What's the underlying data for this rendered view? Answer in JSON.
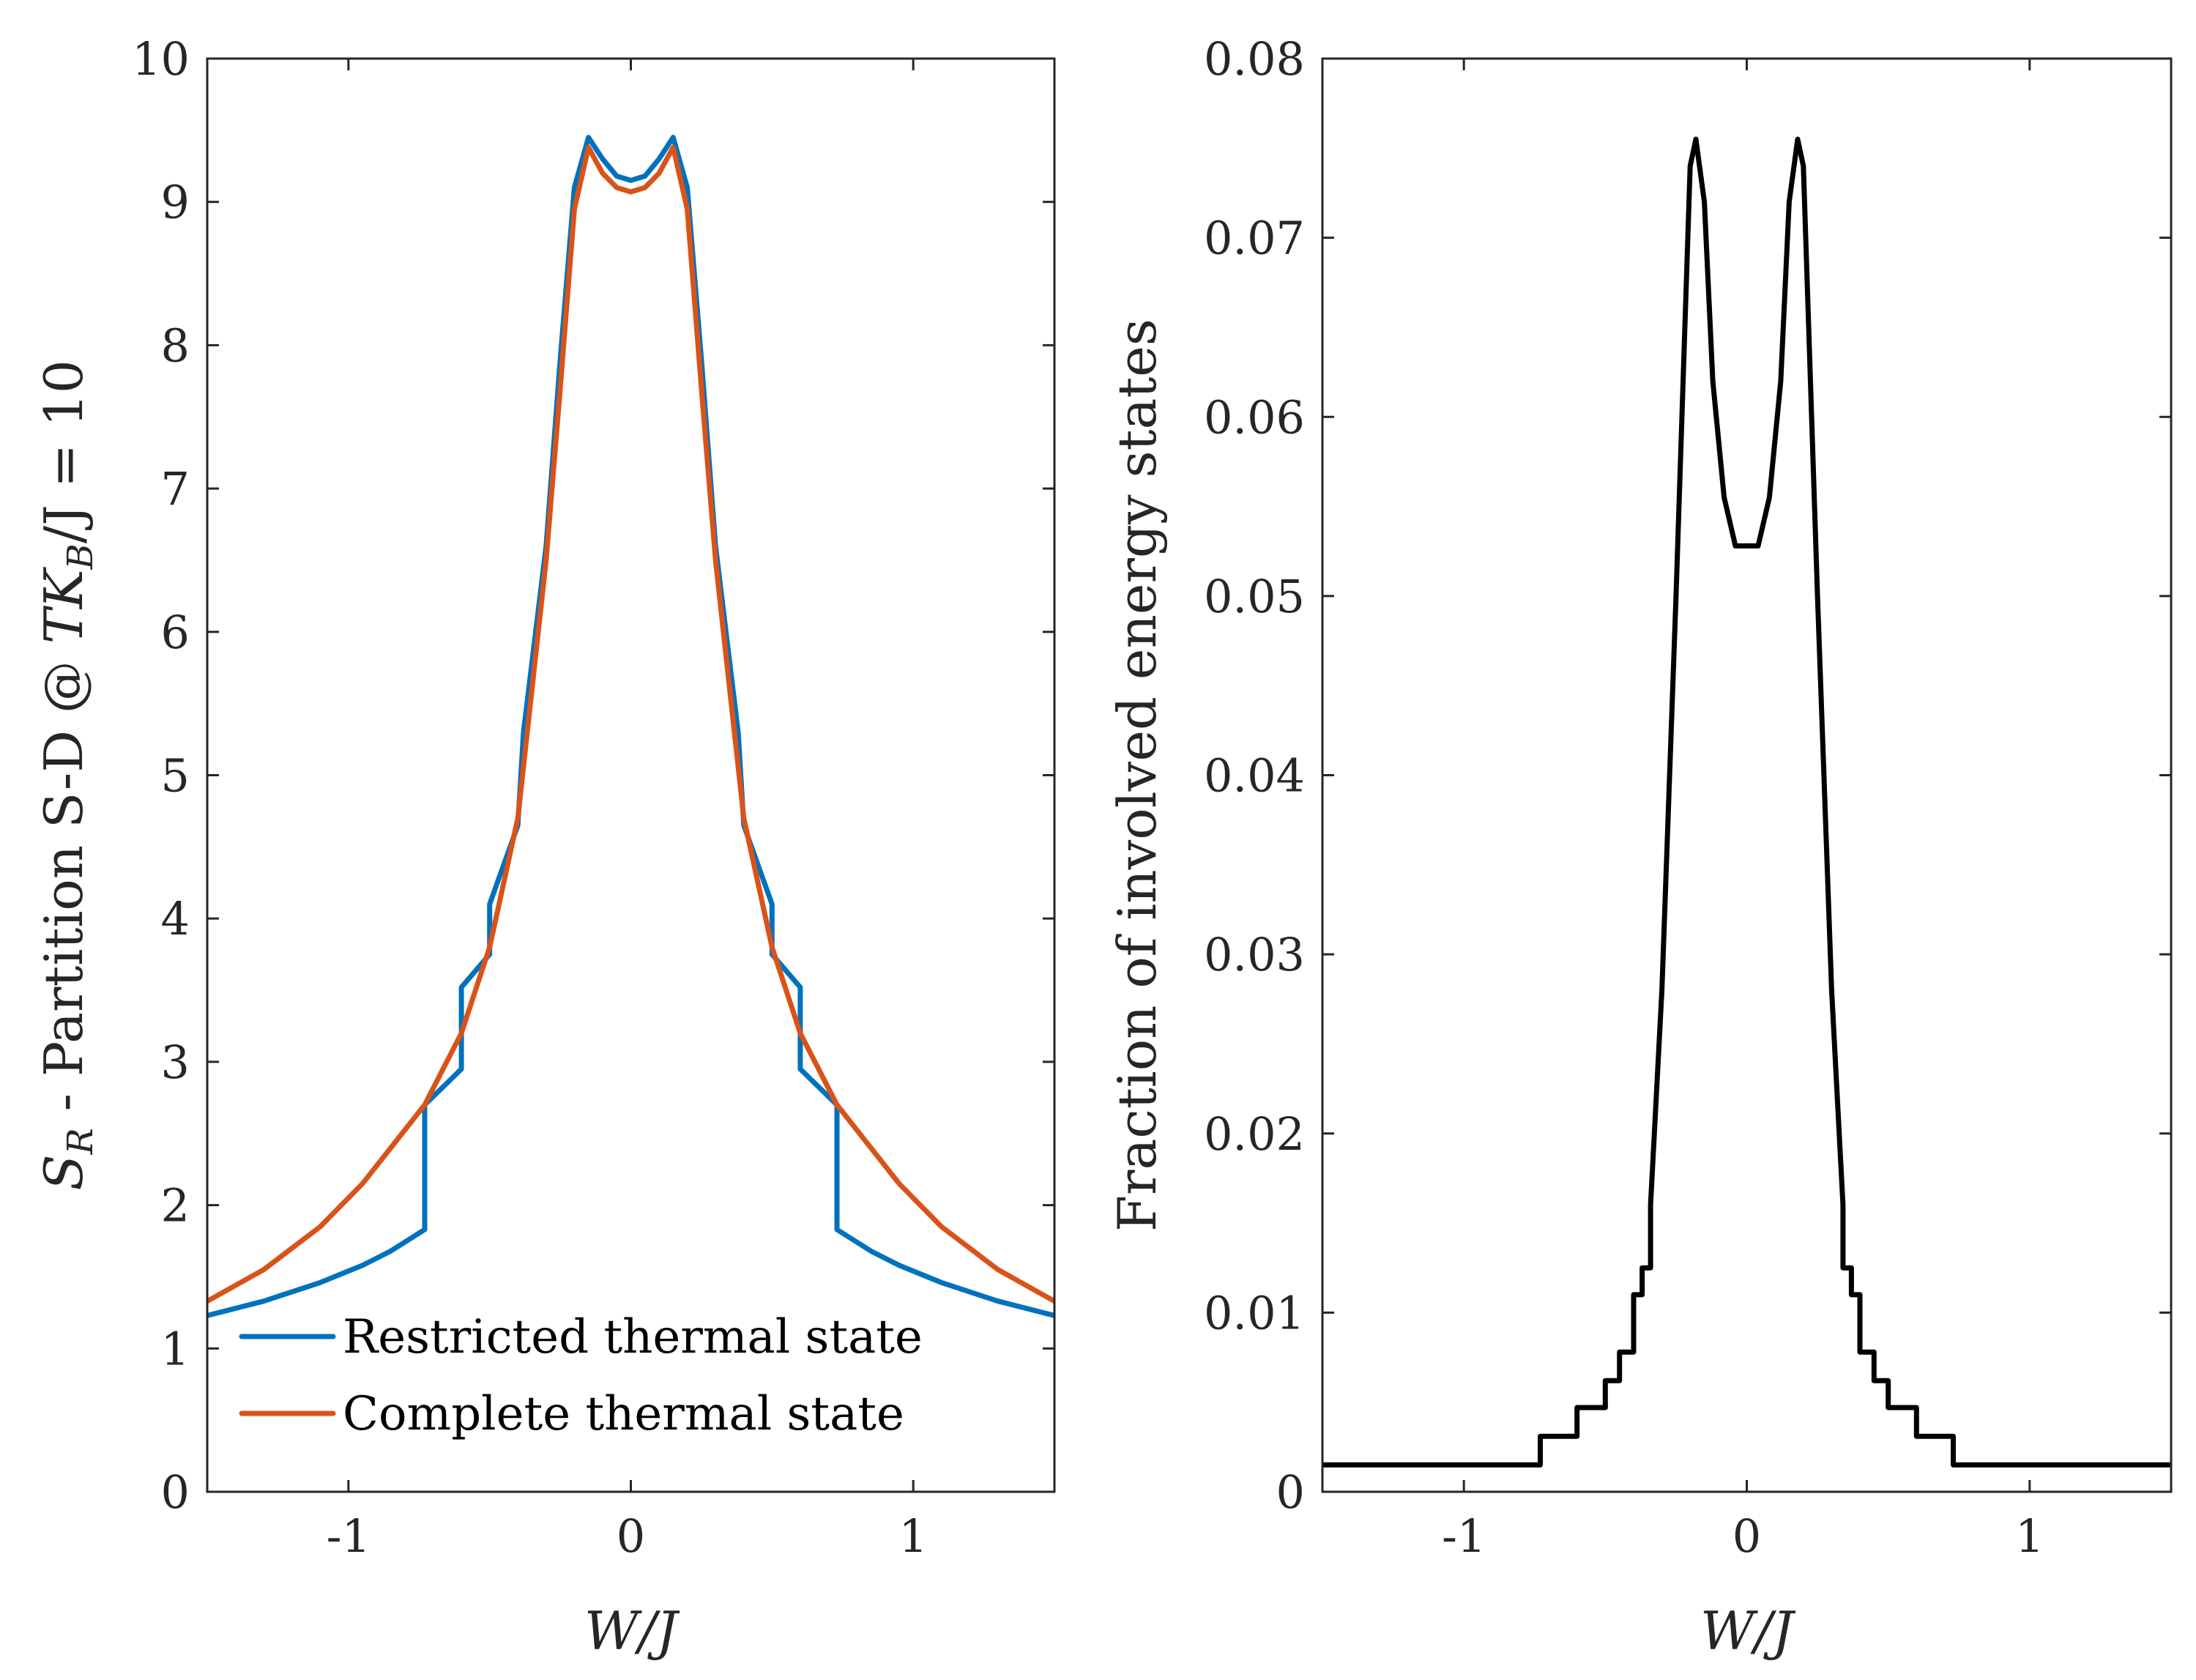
{
  "chart_data": [
    {
      "type": "line",
      "title": "",
      "xlabel": "W/J",
      "ylabel": "S_R - Partition S-D @ TK_B/J = 10",
      "ylabel_parts": {
        "pre": "S",
        "sub": "R",
        "mid": " - Partition S-D @ ",
        "T": "TK",
        "subB": "B",
        "post": "/J = 10"
      },
      "xlim": [
        -1.5,
        1.5
      ],
      "ylim": [
        0,
        10
      ],
      "xticks": [
        -1,
        0,
        1
      ],
      "xtick_labels": [
        "-1",
        "0",
        "1"
      ],
      "yticks": [
        0,
        1,
        2,
        3,
        4,
        5,
        6,
        7,
        8,
        9,
        10
      ],
      "ytick_labels": [
        "0",
        "1",
        "2",
        "3",
        "4",
        "5",
        "6",
        "7",
        "8",
        "9",
        "10"
      ],
      "grid": false,
      "legend_position": "bottom-center",
      "series": [
        {
          "name": "Restricted thermal state",
          "color": "#0072BD",
          "x": [
            -1.5,
            -1.3,
            -1.1,
            -0.95,
            -0.85,
            -0.73,
            -0.73,
            -0.6,
            -0.6,
            -0.5,
            -0.5,
            -0.4,
            -0.38,
            -0.3,
            -0.25,
            -0.2,
            -0.15,
            -0.1,
            -0.05,
            0.0,
            0.05,
            0.1,
            0.15,
            0.2,
            0.25,
            0.3,
            0.38,
            0.4,
            0.5,
            0.5,
            0.6,
            0.6,
            0.73,
            0.73,
            0.85,
            0.95,
            1.1,
            1.3,
            1.5
          ],
          "y": [
            1.23,
            1.33,
            1.46,
            1.58,
            1.68,
            1.83,
            2.7,
            2.95,
            3.52,
            3.75,
            4.1,
            4.65,
            5.3,
            6.6,
            7.9,
            9.1,
            9.45,
            9.3,
            9.18,
            9.15,
            9.18,
            9.3,
            9.45,
            9.1,
            7.9,
            6.6,
            5.3,
            4.65,
            4.1,
            3.75,
            3.52,
            2.95,
            2.7,
            1.83,
            1.68,
            1.58,
            1.46,
            1.33,
            1.23
          ]
        },
        {
          "name": "Complete thermal state",
          "color": "#D95319",
          "x": [
            -1.5,
            -1.3,
            -1.1,
            -0.95,
            -0.85,
            -0.73,
            -0.6,
            -0.5,
            -0.4,
            -0.3,
            -0.25,
            -0.2,
            -0.15,
            -0.1,
            -0.05,
            0.0,
            0.05,
            0.1,
            0.15,
            0.2,
            0.25,
            0.3,
            0.4,
            0.5,
            0.6,
            0.73,
            0.85,
            0.95,
            1.1,
            1.3,
            1.5
          ],
          "y": [
            1.33,
            1.55,
            1.85,
            2.15,
            2.4,
            2.7,
            3.2,
            3.8,
            4.7,
            6.5,
            7.7,
            8.95,
            9.38,
            9.2,
            9.1,
            9.07,
            9.1,
            9.2,
            9.38,
            8.95,
            7.7,
            6.5,
            4.7,
            3.8,
            3.2,
            2.7,
            2.4,
            2.15,
            1.85,
            1.55,
            1.33
          ]
        }
      ]
    },
    {
      "type": "line",
      "title": "",
      "xlabel": "W/J",
      "ylabel": "Fraction of involved energy states",
      "xlim": [
        -1.5,
        1.5
      ],
      "ylim": [
        0,
        0.08
      ],
      "xticks": [
        -1,
        0,
        1
      ],
      "xtick_labels": [
        "-1",
        "0",
        "1"
      ],
      "yticks": [
        0,
        0.01,
        0.02,
        0.03,
        0.04,
        0.05,
        0.06,
        0.07,
        0.08
      ],
      "ytick_labels": [
        "0",
        "0.01",
        "0.02",
        "0.03",
        "0.04",
        "0.05",
        "0.06",
        "0.07",
        "0.08"
      ],
      "grid": false,
      "series": [
        {
          "name": "Fraction of involved energy states",
          "color": "#000000",
          "x": [
            -1.5,
            -0.73,
            -0.73,
            -0.6,
            -0.6,
            -0.5,
            -0.5,
            -0.45,
            -0.45,
            -0.4,
            -0.4,
            -0.37,
            -0.37,
            -0.34,
            -0.34,
            -0.3,
            -0.25,
            -0.2,
            -0.18,
            -0.15,
            -0.12,
            -0.08,
            -0.04,
            0.0,
            0.04,
            0.08,
            0.12,
            0.15,
            0.18,
            0.2,
            0.25,
            0.3,
            0.34,
            0.34,
            0.37,
            0.37,
            0.4,
            0.4,
            0.45,
            0.45,
            0.5,
            0.5,
            0.6,
            0.6,
            0.73,
            0.73,
            1.5
          ],
          "y": [
            0.0015,
            0.0015,
            0.0031,
            0.0031,
            0.0047,
            0.0047,
            0.0062,
            0.0062,
            0.0078,
            0.0078,
            0.011,
            0.011,
            0.0125,
            0.0125,
            0.016,
            0.028,
            0.05,
            0.074,
            0.0755,
            0.072,
            0.062,
            0.0555,
            0.0528,
            0.0528,
            0.0528,
            0.0555,
            0.062,
            0.072,
            0.0755,
            0.074,
            0.05,
            0.028,
            0.016,
            0.0125,
            0.0125,
            0.011,
            0.011,
            0.0078,
            0.0078,
            0.0062,
            0.0062,
            0.0047,
            0.0047,
            0.0031,
            0.0031,
            0.0015,
            0.0015
          ]
        }
      ]
    }
  ],
  "legend": {
    "entries": [
      "Restricted thermal state",
      "Complete thermal state"
    ]
  }
}
